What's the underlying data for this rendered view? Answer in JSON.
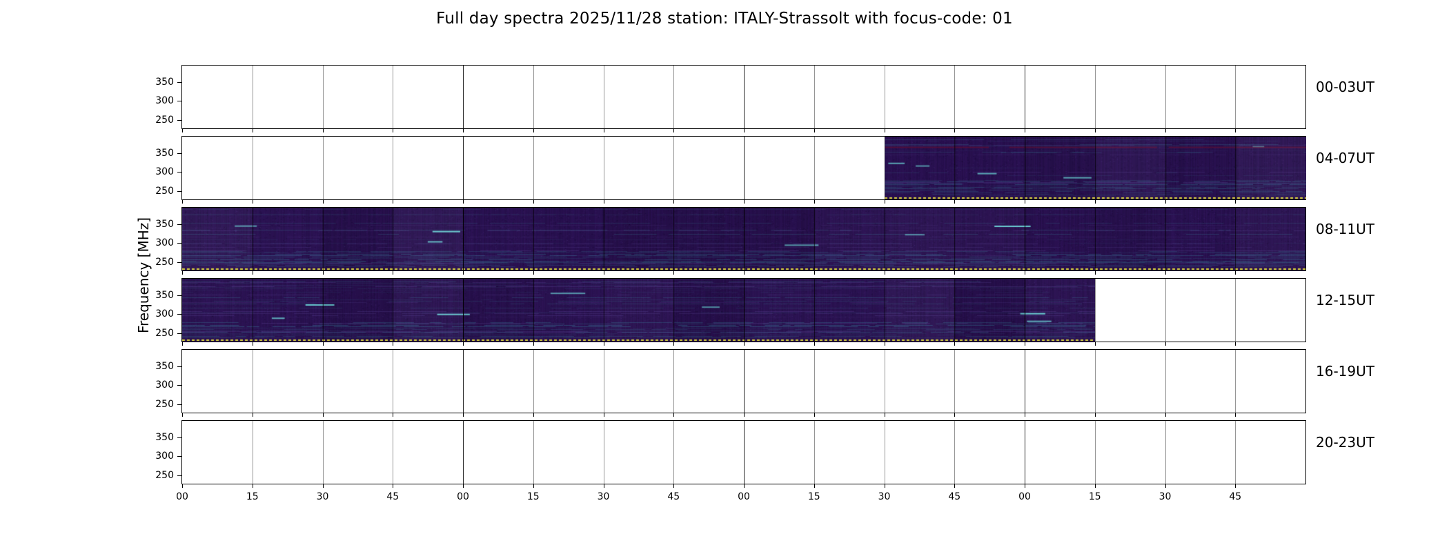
{
  "title": "Full day spectra 2025/11/28 station: ITALY-Strassolt with focus-code: 01",
  "date": "2025/11/28",
  "station": "ITALY-Strassolt",
  "focus_code": "01",
  "chart_data": {
    "type": "heatmap",
    "title": "Full day spectra 2025/11/28 station: ITALY-Strassolt with focus-code: 01",
    "xlabel": "",
    "ylabel": "Frequency [MHz]",
    "y_ticks": [
      350,
      300,
      250
    ],
    "y_axis_unit": "MHz",
    "x_tick_labels": [
      "00",
      "15",
      "30",
      "45",
      "00",
      "15",
      "30",
      "45",
      "00",
      "15",
      "30",
      "45",
      "00",
      "15",
      "30",
      "45"
    ],
    "segments_per_panel": 16,
    "minutes_per_segment": 15,
    "hours_per_panel": 4,
    "legend_position": "none",
    "grid": true,
    "panels": [
      {
        "label": "00-03UT",
        "coverage": []
      },
      {
        "label": "04-07UT",
        "coverage": [
          {
            "start": 0.625,
            "end": 1.0
          }
        ],
        "data_start_time": "06:30",
        "data_end_time": "08:00"
      },
      {
        "label": "08-11UT",
        "coverage": [
          {
            "start": 0.0,
            "end": 1.0
          }
        ],
        "data_start_time": "08:00",
        "data_end_time": "12:00"
      },
      {
        "label": "12-15UT",
        "coverage": [
          {
            "start": 0.0,
            "end": 0.8125
          }
        ],
        "data_start_time": "12:00",
        "data_end_time": "15:15"
      },
      {
        "label": "16-19UT",
        "coverage": []
      },
      {
        "label": "20-23UT",
        "coverage": []
      }
    ],
    "colors": {
      "spectrogram_base": "#2d1356",
      "spectrogram_dark": "#1c0b3a",
      "streak_teal": "#3e96aa",
      "streak_bright": "#6edcdc",
      "streak_maroon": "#5f0f37",
      "marker_yellow": "#ddd83c",
      "frame": "#000000",
      "background": "#ffffff"
    }
  }
}
